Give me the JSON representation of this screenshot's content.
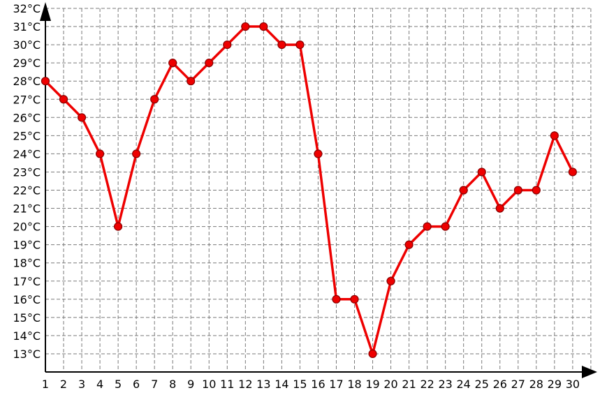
{
  "chart_data": {
    "type": "line",
    "title": "",
    "xlabel": "",
    "ylabel": "",
    "x": [
      1,
      2,
      3,
      4,
      5,
      6,
      7,
      8,
      9,
      10,
      11,
      12,
      13,
      14,
      15,
      16,
      17,
      18,
      19,
      20,
      21,
      22,
      23,
      24,
      25,
      26,
      27,
      28,
      29,
      30
    ],
    "x_tick_labels": [
      "1",
      "2",
      "3",
      "4",
      "5",
      "6",
      "7",
      "8",
      "9",
      "10",
      "11",
      "12",
      "13",
      "14",
      "15",
      "16",
      "17",
      "18",
      "19",
      "20",
      "21",
      "22",
      "23",
      "24",
      "25",
      "26",
      "27",
      "28",
      "29",
      "30"
    ],
    "series": [
      {
        "values": [
          28,
          27,
          26,
          24,
          20,
          24,
          27,
          29,
          28,
          29,
          30,
          31,
          31,
          30,
          30,
          24,
          16,
          16,
          13,
          17,
          19,
          20,
          20,
          22,
          23,
          21,
          22,
          22,
          25,
          23
        ]
      }
    ],
    "y_tick_labels": [
      "13°C",
      "14°C",
      "15°C",
      "16°C",
      "17°C",
      "18°C",
      "19°C",
      "20°C",
      "21°C",
      "22°C",
      "23°C",
      "24°C",
      "25°C",
      "26°C",
      "27°C",
      "28°C",
      "29°C",
      "30°C",
      "31°C",
      "32°C"
    ],
    "xlim": [
      1,
      30
    ],
    "ylim": [
      12,
      32
    ],
    "grid": true,
    "grid_style": "dashed",
    "legend": "none",
    "colors": {
      "line": "#ee0000",
      "marker_fill": "#ee0000",
      "marker_stroke": "#880000",
      "grid": "#7a7a7a",
      "axis": "#000000"
    }
  }
}
